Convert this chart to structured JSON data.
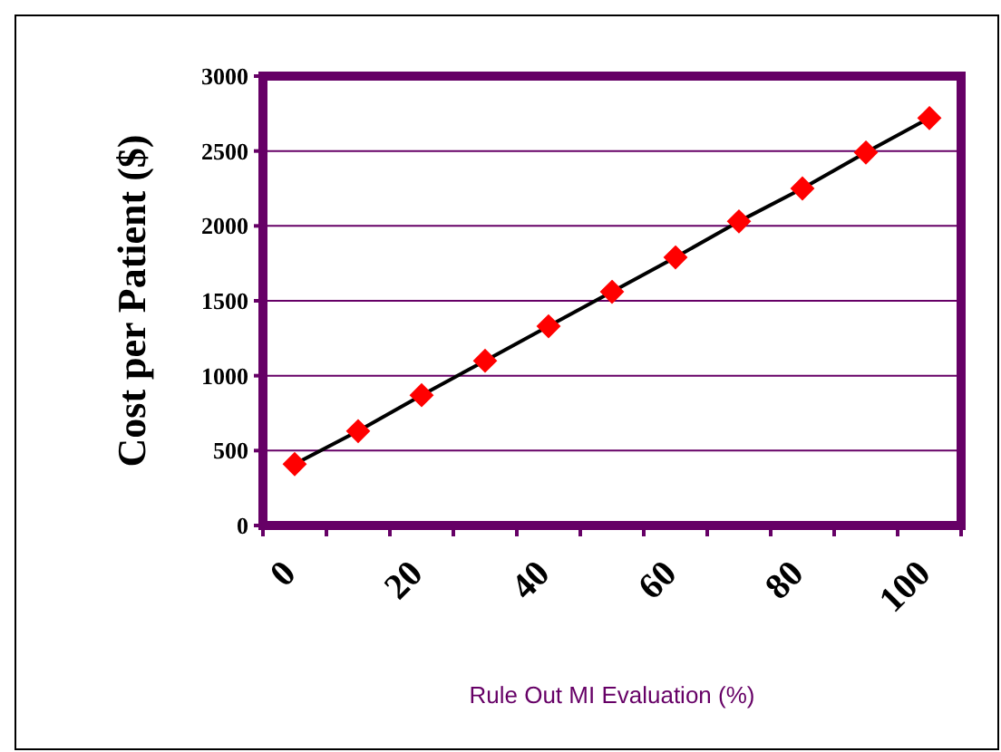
{
  "chart_data": {
    "type": "line",
    "xlabel": "Rule Out MI Evaluation (%)",
    "ylabel": "Cost per Patient ($)",
    "categories": [
      "0",
      null,
      "20",
      null,
      "40",
      null,
      "60",
      null,
      "80",
      null,
      "100"
    ],
    "series": [
      {
        "color": "#ff0000",
        "values": [
          410,
          630,
          870,
          1100,
          1330,
          1560,
          1790,
          2030,
          2250,
          2490,
          2720
        ]
      }
    ],
    "ylim": [
      0,
      3000
    ],
    "yticks": [
      0,
      500,
      1000,
      1500,
      2000,
      2500,
      3000
    ],
    "grid": "y",
    "marker": "diamond",
    "line_style": "solid"
  }
}
